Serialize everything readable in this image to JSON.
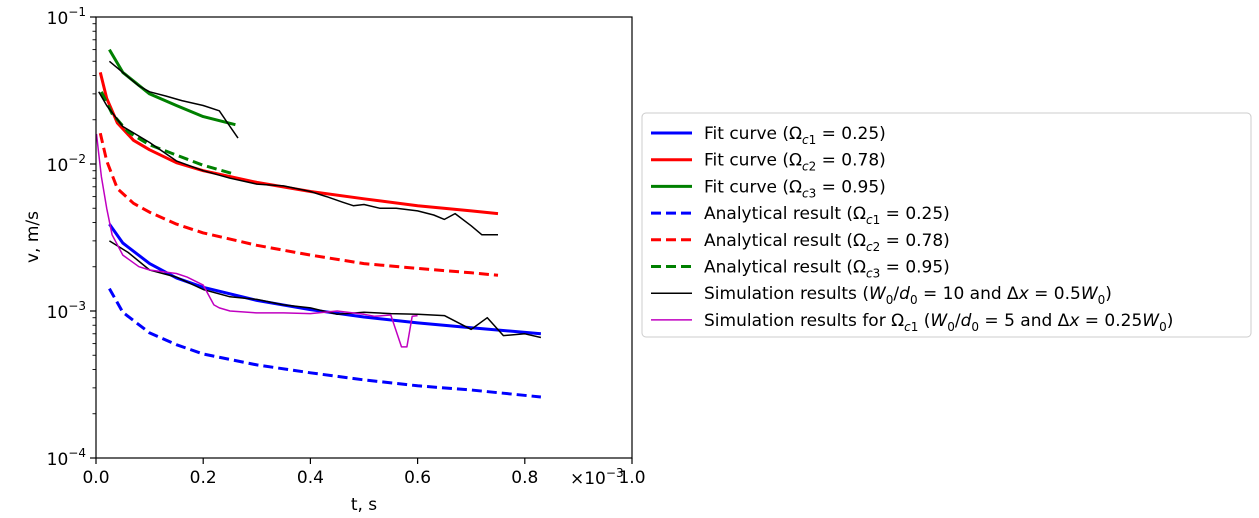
{
  "chart_data": {
    "type": "line",
    "xlabel": "t, s",
    "ylabel": "v, m/s",
    "x_multiplier_label": "×10",
    "x_multiplier_exponent": "−3",
    "xlim": [
      0,
      0.001
    ],
    "ylim": [
      0.0001,
      0.1
    ],
    "yscale": "log",
    "grid": false,
    "legend_position": "right",
    "x_ticks": [
      0,
      0.0002,
      0.0004,
      0.0006,
      0.0008,
      0.001
    ],
    "x_tick_labels": [
      "0.0",
      "0.2",
      "0.4",
      "0.6",
      "0.8",
      "1.0"
    ],
    "y_ticks": [
      {
        "value": 0.0001,
        "base": "10",
        "exp": "−4"
      },
      {
        "value": 0.001,
        "base": "10",
        "exp": "−3"
      },
      {
        "value": 0.01,
        "base": "10",
        "exp": "−2"
      },
      {
        "value": 0.1,
        "base": "10",
        "exp": "−1"
      }
    ],
    "series": [
      {
        "name": "Fit curve (Ωc1 = 0.25)",
        "legend": {
          "pre": "Fit curve (Ω",
          "sub": "c1",
          "post": " =  0.25)"
        },
        "color": "#0000ff",
        "dash": "solid",
        "width": 3,
        "x": [
          2.5e-05,
          5e-05,
          0.0001,
          0.00015,
          0.0002,
          0.0003,
          0.0004,
          0.0005,
          0.0006,
          0.0007,
          0.00083
        ],
        "y": [
          0.0039,
          0.0029,
          0.0021,
          0.00168,
          0.00145,
          0.00118,
          0.00102,
          0.00091,
          0.00083,
          0.00077,
          0.0007
        ]
      },
      {
        "name": "Fit curve (Ωc2 = 0.78)",
        "legend": {
          "pre": "Fit curve (Ω",
          "sub": "c2",
          "post": " =  0.78)"
        },
        "color": "#ff0000",
        "dash": "solid",
        "width": 3,
        "x": [
          8e-06,
          2e-05,
          4e-05,
          7e-05,
          0.0001,
          0.00015,
          0.0002,
          0.0003,
          0.0004,
          0.0005,
          0.0006,
          0.0007,
          0.00075
        ],
        "y": [
          0.042,
          0.028,
          0.019,
          0.0145,
          0.0125,
          0.0102,
          0.009,
          0.0075,
          0.0065,
          0.0058,
          0.0052,
          0.0048,
          0.0046
        ]
      },
      {
        "name": "Fit curve (Ωc3 = 0.95)",
        "legend": {
          "pre": "Fit curve (Ω",
          "sub": "c3",
          "post": " =  0.95)"
        },
        "color": "#008000",
        "dash": "solid",
        "width": 3,
        "x": [
          2.5e-05,
          5e-05,
          0.0001,
          0.00015,
          0.0002,
          0.00026
        ],
        "y": [
          0.06,
          0.042,
          0.03,
          0.025,
          0.021,
          0.0185
        ]
      },
      {
        "name": "Analytical result (Ωc1 = 0.25)",
        "legend": {
          "pre": "Analytical result (Ω",
          "sub": "c1",
          "post": " =  0.25)"
        },
        "color": "#0000ff",
        "dash": "dashed",
        "width": 3,
        "x": [
          2.5e-05,
          5e-05,
          0.0001,
          0.00015,
          0.0002,
          0.0003,
          0.0004,
          0.0005,
          0.0006,
          0.0007,
          0.00083
        ],
        "y": [
          0.00142,
          0.00098,
          0.00071,
          0.00059,
          0.00051,
          0.00043,
          0.00038,
          0.00034,
          0.00031,
          0.00029,
          0.00026
        ]
      },
      {
        "name": "Analytical result (Ωc2 = 0.78)",
        "legend": {
          "pre": "Analytical result (Ω",
          "sub": "c2",
          "post": " =  0.78)"
        },
        "color": "#ff0000",
        "dash": "dashed",
        "width": 3,
        "x": [
          8e-06,
          2e-05,
          4e-05,
          7e-05,
          0.0001,
          0.00015,
          0.0002,
          0.0003,
          0.0004,
          0.0005,
          0.0006,
          0.0007,
          0.00075
        ],
        "y": [
          0.0162,
          0.0105,
          0.0068,
          0.0054,
          0.0047,
          0.0039,
          0.0034,
          0.0028,
          0.0024,
          0.0021,
          0.00195,
          0.00182,
          0.00175
        ]
      },
      {
        "name": "Analytical result (Ωc3 = 0.95)",
        "legend": {
          "pre": "Analytical result (Ω",
          "sub": "c3",
          "post": " =  0.95)"
        },
        "color": "#008000",
        "dash": "dashed",
        "width": 3,
        "x": [
          1e-05,
          3e-05,
          6e-05,
          0.0001,
          0.00015,
          0.0002,
          0.00026
        ],
        "y": [
          0.031,
          0.022,
          0.0165,
          0.0135,
          0.0115,
          0.0098,
          0.0085
        ]
      },
      {
        "name": "Simulation results (W0/d0 = 10 and Δx = 0.5W0)",
        "legend": {
          "html": "Simulation results (<tspan font-style='italic'>W</tspan><tspan font-size='12' dy='5'>0</tspan><tspan dy='-5'>/</tspan><tspan font-style='italic'>d</tspan><tspan font-size='12' dy='5'>0</tspan><tspan dy='-5'> = 10 and Δ</tspan><tspan font-style='italic'>x</tspan><tspan> = 0.5</tspan><tspan font-style='italic'>W</tspan><tspan font-size='12' dy='5'>0</tspan><tspan dy='-5'>)</tspan>"
        },
        "color": "#000000",
        "dash": "solid",
        "width": 1.5,
        "segments": [
          {
            "x": [
              2.5e-05,
              5e-05,
              8e-05,
              0.0001,
              0.00013,
              0.00016,
              0.0002,
              0.00023,
              0.00025,
              0.000265
            ],
            "y": [
              0.05,
              0.042,
              0.034,
              0.031,
              0.029,
              0.027,
              0.025,
              0.023,
              0.018,
              0.015
            ]
          },
          {
            "x": [
              5e-06,
              2e-05,
              5e-05,
              0.0001,
              0.00015,
              0.0002,
              0.00025,
              0.0003,
              0.00035,
              0.0004,
              0.00043,
              0.00046,
              0.00048,
              0.0005,
              0.00053,
              0.00056,
              0.0006,
              0.00063,
              0.00065,
              0.00067,
              0.0007,
              0.00072,
              0.00075
            ],
            "y": [
              0.031,
              0.025,
              0.018,
              0.014,
              0.0105,
              0.009,
              0.008,
              0.0073,
              0.0071,
              0.0065,
              0.006,
              0.0055,
              0.0052,
              0.0053,
              0.005,
              0.005,
              0.0048,
              0.0045,
              0.0042,
              0.0046,
              0.0038,
              0.0033,
              0.0033
            ]
          },
          {
            "x": [
              2.5e-05,
              6e-05,
              0.0001,
              0.00015,
              0.0002,
              0.00025,
              0.0003,
              0.00035,
              0.0004,
              0.00045,
              0.0005,
              0.00055,
              0.0006,
              0.00065,
              0.0007,
              0.00073,
              0.00076,
              0.0008,
              0.00083
            ],
            "y": [
              0.003,
              0.0025,
              0.0019,
              0.0017,
              0.0014,
              0.00125,
              0.0012,
              0.0011,
              0.00105,
              0.00095,
              0.00098,
              0.00096,
              0.00095,
              0.00093,
              0.00075,
              0.0009,
              0.00068,
              0.0007,
              0.00066
            ]
          }
        ]
      },
      {
        "name": "Simulation results for Ωc1 (W0/d0 = 5 and Δx = 0.25W0)",
        "legend": {
          "html": "Simulation results for Ω<tspan font-size='12' dy='5' font-style='italic'>c</tspan><tspan font-size='12'>1</tspan><tspan dy='-5'> (</tspan><tspan font-style='italic'>W</tspan><tspan font-size='12' dy='5'>0</tspan><tspan dy='-5'>/</tspan><tspan font-style='italic'>d</tspan><tspan font-size='12' dy='5'>0</tspan><tspan dy='-5'> = 5 and Δ</tspan><tspan font-style='italic'>x</tspan><tspan> = 0.25</tspan><tspan font-style='italic'>W</tspan><tspan font-size='12' dy='5'>0</tspan><tspan dy='-5'>)</tspan>"
        },
        "color": "#c000c0",
        "dash": "solid",
        "width": 1.5,
        "x": [
          1e-06,
          5e-06,
          1e-05,
          2e-05,
          3e-05,
          5e-05,
          8e-05,
          0.0001,
          0.00015,
          0.00017,
          0.0002,
          0.00022,
          0.00023,
          0.00025,
          0.0003,
          0.00035,
          0.0004,
          0.00045,
          0.0005,
          0.00052,
          0.00055,
          0.00057,
          0.00058,
          0.00059,
          0.0006
        ],
        "y": [
          0.016,
          0.0118,
          0.0082,
          0.005,
          0.0033,
          0.0024,
          0.002,
          0.0019,
          0.0018,
          0.0017,
          0.0015,
          0.0011,
          0.00105,
          0.001,
          0.00097,
          0.00097,
          0.00096,
          0.001,
          0.00095,
          0.00092,
          0.00094,
          0.00057,
          0.00057,
          0.00092,
          0.00093
        ]
      }
    ]
  }
}
